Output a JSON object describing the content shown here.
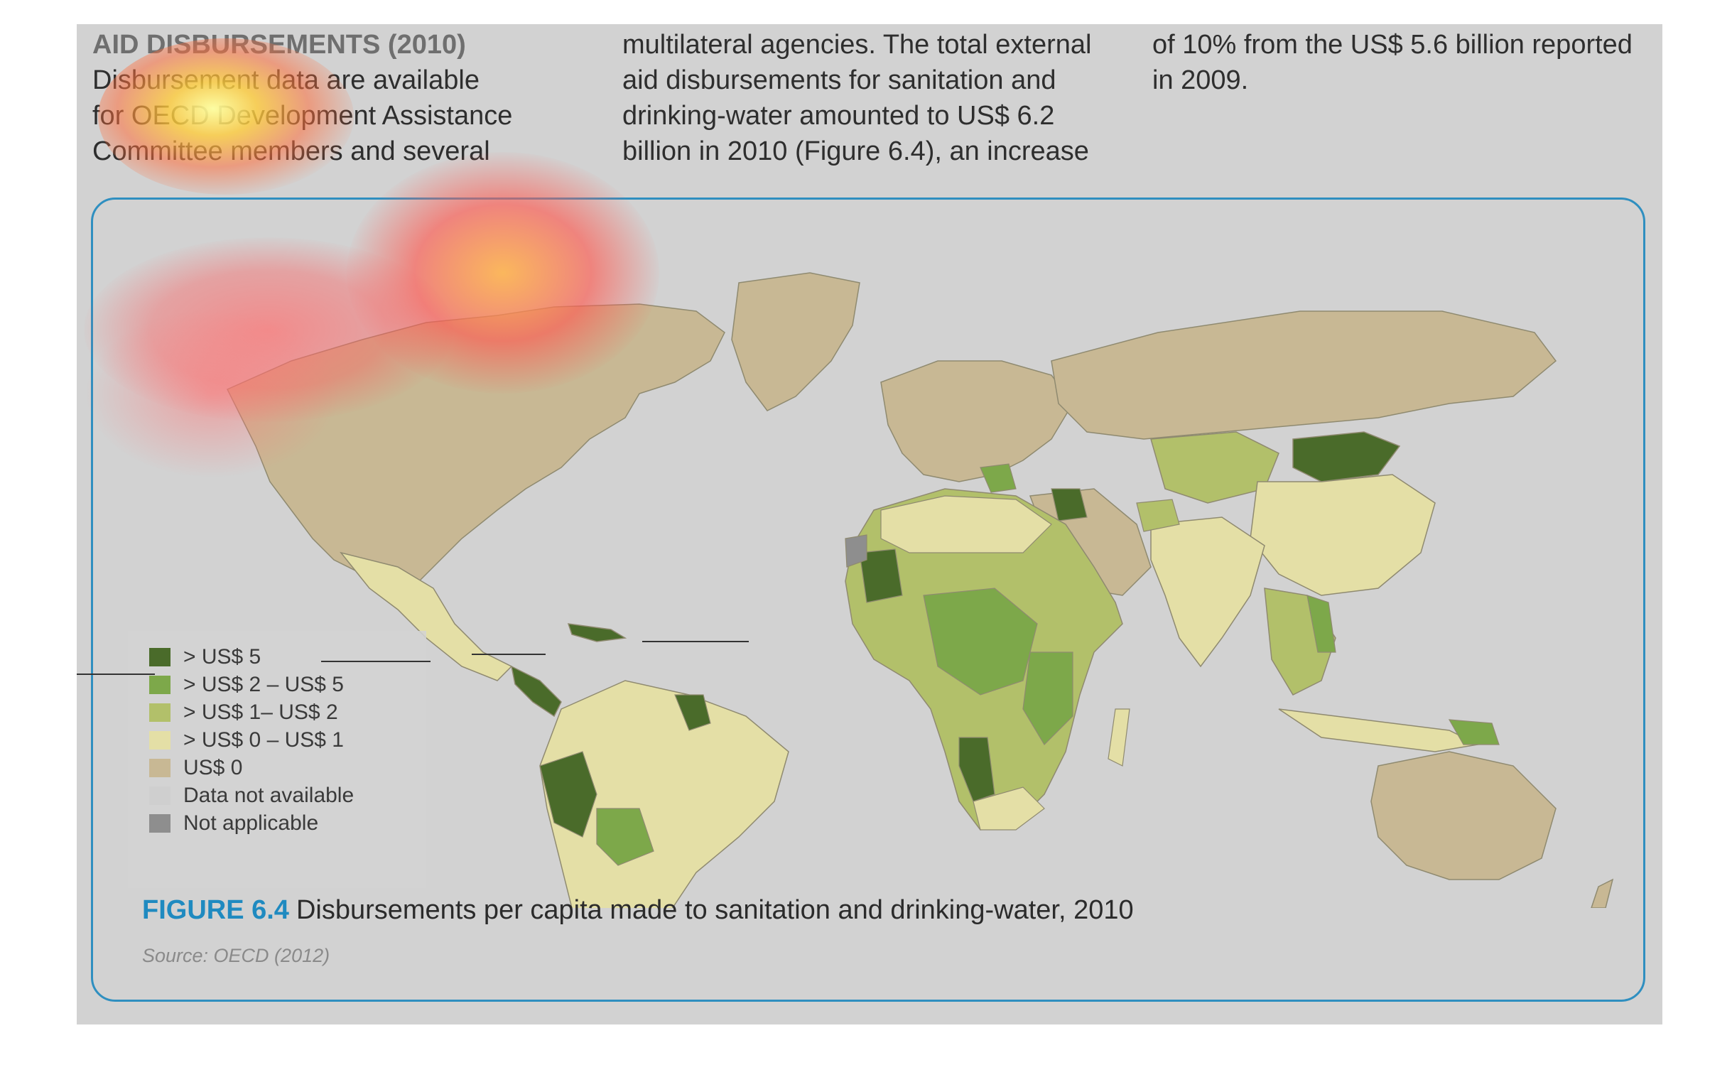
{
  "article": {
    "heading": "AID DISBURSEMENTS (2010)",
    "col1_lines": [
      "Disbursement data are available",
      "for OECD Development Assistance",
      "Committee members and several"
    ],
    "col2_lines": [
      "multilateral agencies. The total external",
      "aid disbursements for sanitation and",
      "drinking-water amounted to US$ 6.2",
      "billion in 2010 (Figure 6.4), an increase"
    ],
    "col3_lines": [
      "of 10% from the US$ 5.6 billion reported",
      "in 2009."
    ]
  },
  "figure": {
    "number": "FIGURE 6.4",
    "title": "Disbursements per capita made to sanitation and drinking-water, 2010",
    "source": "Source: OECD (2012)"
  },
  "legend": [
    {
      "label": "> US$ 5",
      "color": "#4a6b2a"
    },
    {
      "label": "> US$ 2 – US$ 5",
      "color": "#7da84a"
    },
    {
      "label": "> US$ 1– US$ 2",
      "color": "#b2c06a"
    },
    {
      "label": "> US$ 0 – US$ 1",
      "color": "#e4dfa6"
    },
    {
      "label": "US$ 0",
      "color": "#c8b894"
    },
    {
      "label": "Data not available",
      "color": "#cfcfcf"
    },
    {
      "label": "Not applicable",
      "color": "#8e8e8e"
    }
  ],
  "colors": {
    "accent": "#1f8ac0",
    "page_bg": "#d2d2d2",
    "ocean": "#d4d4d4"
  }
}
